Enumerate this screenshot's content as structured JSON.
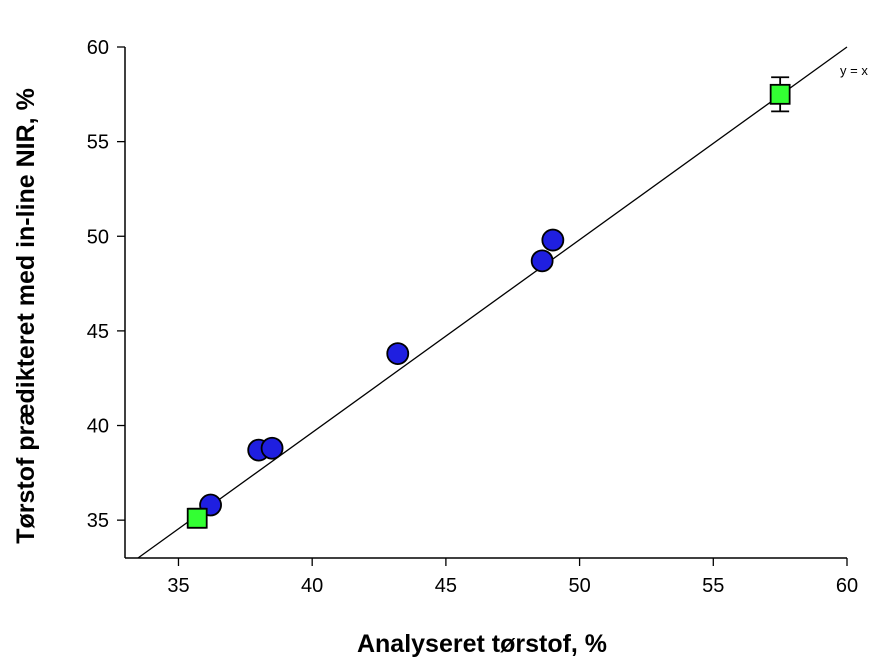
{
  "chart_data": {
    "type": "scatter",
    "title": "",
    "xlabel": "Analyseret tørstof, %",
    "ylabel": "Tørstof prædikteret med in-line NIR, %",
    "xlim": [
      33,
      60
    ],
    "ylim": [
      33,
      60
    ],
    "xticks": [
      35,
      40,
      45,
      50,
      55,
      60
    ],
    "yticks": [
      35,
      40,
      45,
      50,
      55,
      60
    ],
    "grid": false,
    "reference_line": {
      "label": "y = x",
      "from": [
        33,
        33
      ],
      "to": [
        60,
        60
      ]
    },
    "series": [
      {
        "marker": "circle",
        "color": "#1f1fe0",
        "points": [
          {
            "x": 36.2,
            "y": 35.8
          },
          {
            "x": 38.0,
            "y": 38.7
          },
          {
            "x": 38.5,
            "y": 38.8
          },
          {
            "x": 43.2,
            "y": 43.8
          },
          {
            "x": 48.6,
            "y": 48.7
          },
          {
            "x": 49.0,
            "y": 49.8
          }
        ]
      },
      {
        "marker": "square",
        "color": "#33ff33",
        "points": [
          {
            "x": 35.7,
            "y": 35.1,
            "err": 0.5
          },
          {
            "x": 57.5,
            "y": 57.5,
            "err": 0.9
          }
        ]
      }
    ]
  }
}
